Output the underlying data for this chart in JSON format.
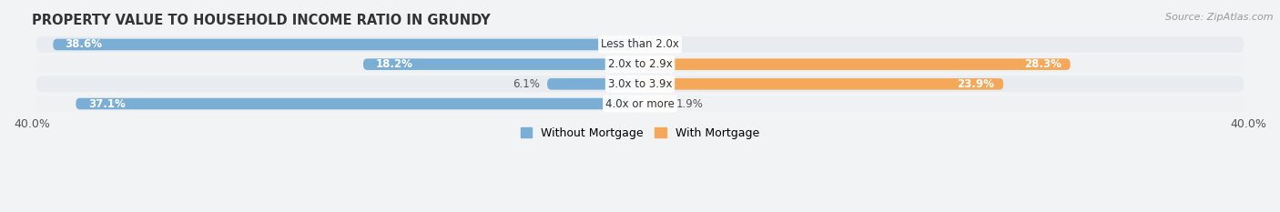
{
  "title": "PROPERTY VALUE TO HOUSEHOLD INCOME RATIO IN GRUNDY",
  "source": "Source: ZipAtlas.com",
  "categories": [
    "Less than 2.0x",
    "2.0x to 2.9x",
    "3.0x to 3.9x",
    "4.0x or more"
  ],
  "without_mortgage": [
    38.6,
    18.2,
    6.1,
    37.1
  ],
  "with_mortgage": [
    0.0,
    28.3,
    23.9,
    1.9
  ],
  "color_without": "#7aaed4",
  "color_with": "#f5a85a",
  "color_with_light": "#f8cfa0",
  "xlim_abs": 40,
  "bar_height": 0.58,
  "row_colors": [
    "#e8ecf0",
    "#f0f1f3"
  ],
  "background_color": "#f2f3f5",
  "legend_labels": [
    "Without Mortgage",
    "With Mortgage"
  ]
}
